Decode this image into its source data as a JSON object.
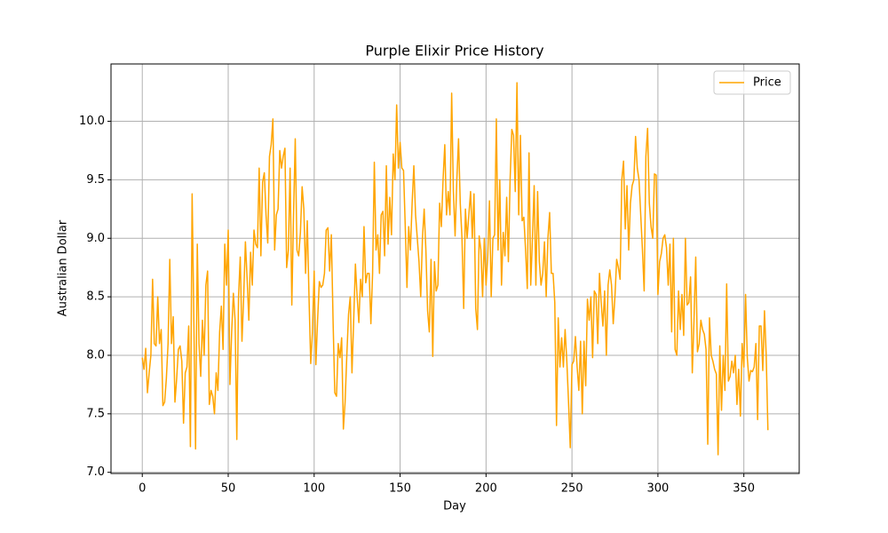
{
  "chart_data": {
    "type": "line",
    "title": "Purple Elixir Price History",
    "xlabel": "Day",
    "ylabel": "Australian Dollar",
    "x": [
      0,
      1,
      2,
      3,
      4,
      5,
      6,
      7,
      8,
      9,
      10,
      11,
      12,
      13,
      14,
      15,
      16,
      17,
      18,
      19,
      20,
      21,
      22,
      23,
      24,
      25,
      26,
      27,
      28,
      29,
      30,
      31,
      32,
      33,
      34,
      35,
      36,
      37,
      38,
      39,
      40,
      41,
      42,
      43,
      44,
      45,
      46,
      47,
      48,
      49,
      50,
      51,
      52,
      53,
      54,
      55,
      56,
      57,
      58,
      59,
      60,
      61,
      62,
      63,
      64,
      65,
      66,
      67,
      68,
      69,
      70,
      71,
      72,
      73,
      74,
      75,
      76,
      77,
      78,
      79,
      80,
      81,
      82,
      83,
      84,
      85,
      86,
      87,
      88,
      89,
      90,
      91,
      92,
      93,
      94,
      95,
      96,
      97,
      98,
      99,
      100,
      101,
      102,
      103,
      104,
      105,
      106,
      107,
      108,
      109,
      110,
      111,
      112,
      113,
      114,
      115,
      116,
      117,
      118,
      119,
      120,
      121,
      122,
      123,
      124,
      125,
      126,
      127,
      128,
      129,
      130,
      131,
      132,
      133,
      134,
      135,
      136,
      137,
      138,
      139,
      140,
      141,
      142,
      143,
      144,
      145,
      146,
      147,
      148,
      149,
      150,
      151,
      152,
      153,
      154,
      155,
      156,
      157,
      158,
      159,
      160,
      161,
      162,
      163,
      164,
      165,
      166,
      167,
      168,
      169,
      170,
      171,
      172,
      173,
      174,
      175,
      176,
      177,
      178,
      179,
      180,
      181,
      182,
      183,
      184,
      185,
      186,
      187,
      188,
      189,
      190,
      191,
      192,
      193,
      194,
      195,
      196,
      197,
      198,
      199,
      200,
      201,
      202,
      203,
      204,
      205,
      206,
      207,
      208,
      209,
      210,
      211,
      212,
      213,
      214,
      215,
      216,
      217,
      218,
      219,
      220,
      221,
      222,
      223,
      224,
      225,
      226,
      227,
      228,
      229,
      230,
      231,
      232,
      233,
      234,
      235,
      236,
      237,
      238,
      239,
      240,
      241,
      242,
      243,
      244,
      245,
      246,
      247,
      248,
      249,
      250,
      251,
      252,
      253,
      254,
      255,
      256,
      257,
      258,
      259,
      260,
      261,
      262,
      263,
      264,
      265,
      266,
      267,
      268,
      269,
      270,
      271,
      272,
      273,
      274,
      275,
      276,
      277,
      278,
      279,
      280,
      281,
      282,
      283,
      284,
      285,
      286,
      287,
      288,
      289,
      290,
      291,
      292,
      293,
      294,
      295,
      296,
      297,
      298,
      299,
      300,
      301,
      302,
      303,
      304,
      305,
      306,
      307,
      308,
      309,
      310,
      311,
      312,
      313,
      314,
      315,
      316,
      317,
      318,
      319,
      320,
      321,
      322,
      323,
      324,
      325,
      326,
      327,
      328,
      329,
      330,
      331,
      332,
      333,
      334,
      335,
      336,
      337,
      338,
      339,
      340,
      341,
      342,
      343,
      344,
      345,
      346,
      347,
      348,
      349,
      350,
      351,
      352,
      353,
      354,
      355,
      356,
      357,
      358,
      359,
      360,
      361,
      362,
      363,
      364
    ],
    "series": [
      {
        "name": "Price",
        "color": "orange",
        "values": [
          7.98,
          7.88,
          8.06,
          7.68,
          7.85,
          8.0,
          8.65,
          8.1,
          8.08,
          8.5,
          8.1,
          8.22,
          7.57,
          7.6,
          7.8,
          8.1,
          8.82,
          8.1,
          8.33,
          7.6,
          7.8,
          8.05,
          8.08,
          7.95,
          7.42,
          7.85,
          7.9,
          8.25,
          7.22,
          9.38,
          8.3,
          7.2,
          8.95,
          8.1,
          7.82,
          8.3,
          8.0,
          8.6,
          8.72,
          7.58,
          7.7,
          7.65,
          7.5,
          7.85,
          7.7,
          8.2,
          8.42,
          8.05,
          8.95,
          8.6,
          9.07,
          7.75,
          8.2,
          8.53,
          8.3,
          7.28,
          8.5,
          8.84,
          8.12,
          8.5,
          8.97,
          8.65,
          8.3,
          8.88,
          8.6,
          9.07,
          8.95,
          8.92,
          9.6,
          8.85,
          9.48,
          9.56,
          9.2,
          8.96,
          9.7,
          9.8,
          10.02,
          8.9,
          9.2,
          9.25,
          9.75,
          9.6,
          9.7,
          9.77,
          8.75,
          8.9,
          9.6,
          8.43,
          9.2,
          9.85,
          8.9,
          8.85,
          9.05,
          9.44,
          9.25,
          8.7,
          9.15,
          8.5,
          7.93,
          8.2,
          8.72,
          7.92,
          8.3,
          8.63,
          8.58,
          8.6,
          8.7,
          9.07,
          9.09,
          8.72,
          9.03,
          8.3,
          7.68,
          7.65,
          8.1,
          7.98,
          8.15,
          7.37,
          7.6,
          8.0,
          8.35,
          8.5,
          7.85,
          8.3,
          8.78,
          8.5,
          8.28,
          8.65,
          8.5,
          9.1,
          8.62,
          8.7,
          8.7,
          8.27,
          8.7,
          9.65,
          8.9,
          9.03,
          8.7,
          9.2,
          9.23,
          8.85,
          9.62,
          8.95,
          9.35,
          9.03,
          9.72,
          9.5,
          10.14,
          9.6,
          9.82,
          9.6,
          9.58,
          9.1,
          8.58,
          9.1,
          8.9,
          9.3,
          9.62,
          9.2,
          9.0,
          8.8,
          8.5,
          9.0,
          9.25,
          8.9,
          8.38,
          8.2,
          8.82,
          7.99,
          8.8,
          8.55,
          8.6,
          9.3,
          9.1,
          9.5,
          9.8,
          9.2,
          9.4,
          9.2,
          10.24,
          9.4,
          9.02,
          9.5,
          9.85,
          9.3,
          9.0,
          8.4,
          9.25,
          9.0,
          9.2,
          9.4,
          9.0,
          9.38,
          8.4,
          8.22,
          9.02,
          8.9,
          8.5,
          9.0,
          8.6,
          8.85,
          9.32,
          8.5,
          9.0,
          9.03,
          10.02,
          8.9,
          9.5,
          8.6,
          9.05,
          8.85,
          9.35,
          8.8,
          9.5,
          9.93,
          9.88,
          9.4,
          10.33,
          9.2,
          9.88,
          9.15,
          9.18,
          8.9,
          8.57,
          9.73,
          8.6,
          9.0,
          9.45,
          8.6,
          9.4,
          8.8,
          8.6,
          8.7,
          8.97,
          8.5,
          9.0,
          9.22,
          8.7,
          8.7,
          8.45,
          7.4,
          8.32,
          7.9,
          8.15,
          7.9,
          8.22,
          7.95,
          7.6,
          7.21,
          7.92,
          7.95,
          8.16,
          7.9,
          7.7,
          8.12,
          7.5,
          8.12,
          7.74,
          8.48,
          8.3,
          8.5,
          7.98,
          8.55,
          8.52,
          8.1,
          8.7,
          8.45,
          8.25,
          8.55,
          8.0,
          8.6,
          8.73,
          8.6,
          8.27,
          8.5,
          8.82,
          8.75,
          8.65,
          9.5,
          9.66,
          9.08,
          9.45,
          8.9,
          9.3,
          9.45,
          9.5,
          9.87,
          9.6,
          9.5,
          9.2,
          8.9,
          8.55,
          9.7,
          9.94,
          9.3,
          9.1,
          9.0,
          9.55,
          9.54,
          8.52,
          8.8,
          8.87,
          9.0,
          9.03,
          8.92,
          8.6,
          8.95,
          8.2,
          9.0,
          8.05,
          8.0,
          8.55,
          8.22,
          8.52,
          8.17,
          9.0,
          8.43,
          8.45,
          8.67,
          7.85,
          8.3,
          8.84,
          8.03,
          8.1,
          8.3,
          8.22,
          8.18,
          8.05,
          7.24,
          8.32,
          8.0,
          7.95,
          7.88,
          7.84,
          7.15,
          8.08,
          7.53,
          8.0,
          7.7,
          8.61,
          7.78,
          7.82,
          7.95,
          7.85,
          8.0,
          7.58,
          7.88,
          7.48,
          8.1,
          7.9,
          8.52,
          7.98,
          7.78,
          7.87,
          7.86,
          7.9,
          8.1,
          7.45,
          8.25,
          8.25,
          7.87,
          8.38,
          8.0,
          7.36
        ]
      }
    ],
    "xlim": [
      -18.2,
      382.2
    ],
    "ylim": [
      6.99,
      10.49
    ],
    "xticks": [
      0,
      50,
      100,
      150,
      200,
      250,
      300,
      350
    ],
    "yticks": [
      {
        "value": 7,
        "label": "7.0"
      },
      7.5,
      {
        "value": 8,
        "label": "8.0"
      },
      8.5,
      {
        "value": 9,
        "label": "9.0"
      },
      9.5,
      {
        "value": 10,
        "label": "10.0"
      }
    ],
    "grid": true,
    "legend": "upper right"
  }
}
